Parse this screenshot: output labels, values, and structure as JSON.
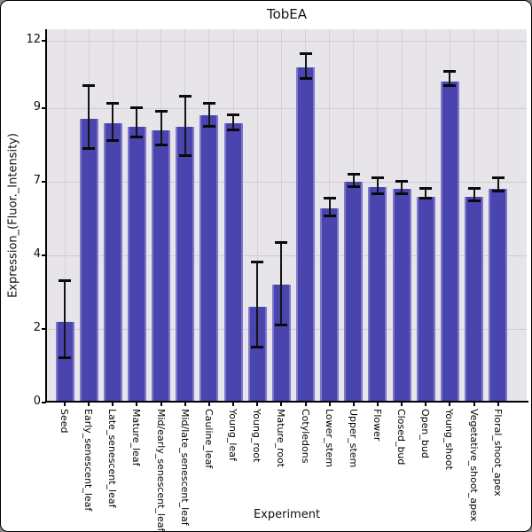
{
  "title": "TobEA",
  "y_axis": {
    "label": "Expression_(Fluor._Intensity)",
    "tick_labels": [
      "0",
      "2",
      "4",
      "7",
      "9",
      "12"
    ]
  },
  "x_axis": {
    "label": "Experiment"
  },
  "colors": {
    "bar_fill": "#4a44af",
    "bar_edge_highlight": "#7d78cb",
    "panel_background": "#e7e5e9",
    "gridline": "#cecbd2",
    "axis_line": "#000000",
    "error_bar": "#0a0a0a",
    "figure_background": "#ffffff",
    "border": "#000000"
  },
  "chart_data": {
    "type": "bar",
    "title": "TobEA",
    "xlabel": "Experiment",
    "ylabel": "Expression_(Fluor._Intensity)",
    "ylim": [
      0,
      12
    ],
    "yticks": [
      0,
      2,
      4,
      7,
      9,
      12
    ],
    "grid": true,
    "legend": false,
    "error_bars": true,
    "categories": [
      "Seed",
      "Early_senescent_leaf",
      "Late_senescent_leaf",
      "Mature_leaf",
      "Mid/early_senescent_leaf",
      "Mid/late_senescent_leaf",
      "Cauline_leaf",
      "Young_leaf",
      "Young_root",
      "Mature_root",
      "Cotyledons",
      "Lower_stem",
      "Upper_stem",
      "Flower",
      "Closed_bud",
      "Open_bud",
      "Young_shoot",
      "Vegetative_shoot_apex",
      "Floral_shoot_apex"
    ],
    "values": [
      2.2,
      8.7,
      8.6,
      8.5,
      8.4,
      8.5,
      8.8,
      8.6,
      2.6,
      3.2,
      10.8,
      5.9,
      7.0,
      6.8,
      6.7,
      6.4,
      10.2,
      6.4,
      6.7
    ],
    "error_low": [
      1.2,
      7.9,
      8.1,
      8.2,
      8.0,
      7.7,
      8.5,
      8.4,
      1.5,
      2.1,
      10.3,
      5.6,
      6.8,
      6.5,
      6.5,
      6.3,
      10.0,
      6.2,
      6.6
    ],
    "error_high": [
      3.3,
      10.0,
      9.2,
      9.0,
      8.9,
      9.5,
      9.2,
      8.8,
      3.8,
      4.5,
      11.4,
      6.3,
      7.2,
      7.1,
      7.0,
      6.7,
      10.6,
      6.7,
      7.1
    ]
  }
}
